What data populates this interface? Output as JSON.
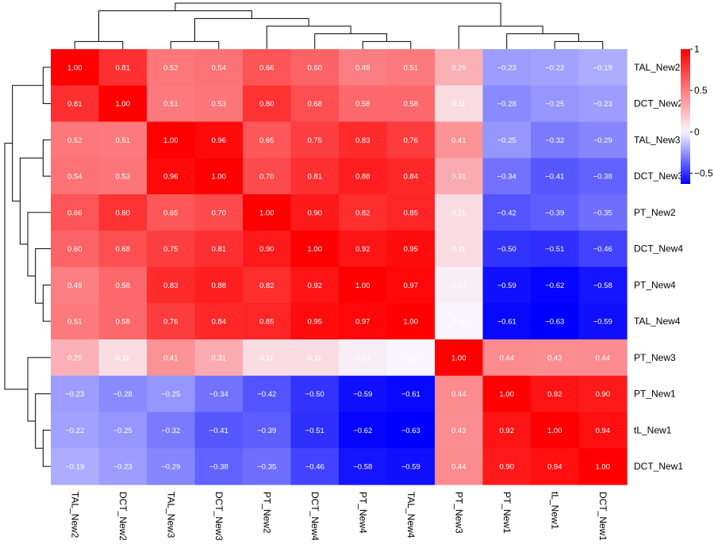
{
  "chart_data": {
    "type": "heatmap",
    "title": "",
    "xlabel": "",
    "ylabel": "",
    "rows": [
      "TAL_New2",
      "DCT_New2",
      "TAL_New3",
      "DCT_New3",
      "PT_New2",
      "DCT_New4",
      "PT_New4",
      "TAL_New4",
      "PT_New3",
      "PT_New1",
      "tL_New1",
      "DCT_New1"
    ],
    "columns": [
      "TAL_New2",
      "DCT_New2",
      "TAL_New3",
      "DCT_New3",
      "PT_New2",
      "DCT_New4",
      "PT_New4",
      "TAL_New4",
      "PT_New3",
      "PT_New1",
      "tL_New1",
      "DCT_New1"
    ],
    "values": [
      [
        1.0,
        0.81,
        0.52,
        0.54,
        0.66,
        0.6,
        0.49,
        0.51,
        0.29,
        -0.23,
        -0.22,
        -0.19
      ],
      [
        0.81,
        1.0,
        0.51,
        0.53,
        0.8,
        0.68,
        0.58,
        0.58,
        0.11,
        -0.28,
        -0.25,
        -0.23
      ],
      [
        0.52,
        0.51,
        1.0,
        0.96,
        0.65,
        0.75,
        0.83,
        0.76,
        0.41,
        -0.25,
        -0.32,
        -0.29
      ],
      [
        0.54,
        0.53,
        0.96,
        1.0,
        0.7,
        0.81,
        0.88,
        0.84,
        0.31,
        -0.34,
        -0.41,
        -0.38
      ],
      [
        0.66,
        0.8,
        0.65,
        0.7,
        1.0,
        0.9,
        0.82,
        0.85,
        0.11,
        -0.42,
        -0.39,
        -0.35
      ],
      [
        0.6,
        0.68,
        0.75,
        0.81,
        0.9,
        1.0,
        0.92,
        0.95,
        0.11,
        -0.5,
        -0.51,
        -0.46
      ],
      [
        0.49,
        0.58,
        0.83,
        0.88,
        0.82,
        0.92,
        1.0,
        0.97,
        0.04,
        -0.59,
        -0.62,
        -0.58
      ],
      [
        0.51,
        0.58,
        0.76,
        0.84,
        0.85,
        0.95,
        0.97,
        1.0,
        0.01,
        -0.61,
        -0.63,
        -0.59
      ],
      [
        0.29,
        0.11,
        0.41,
        0.31,
        0.11,
        0.11,
        0.04,
        0.01,
        1.0,
        0.44,
        0.43,
        0.44
      ],
      [
        -0.23,
        -0.28,
        -0.25,
        -0.34,
        -0.42,
        -0.5,
        -0.59,
        -0.61,
        0.44,
        1.0,
        0.92,
        0.9
      ],
      [
        -0.22,
        -0.25,
        -0.32,
        -0.41,
        -0.39,
        -0.51,
        -0.62,
        -0.63,
        0.43,
        0.92,
        1.0,
        0.94
      ],
      [
        -0.19,
        -0.23,
        -0.29,
        -0.38,
        -0.35,
        -0.46,
        -0.58,
        -0.59,
        0.44,
        0.9,
        0.94,
        1.0
      ]
    ],
    "color_scale": {
      "min": -0.63,
      "mid": 0,
      "max": 1,
      "low_color": "#0000ff",
      "mid_color": "#f8f8ff",
      "high_color": "#ff0000",
      "ticks": [
        1,
        0.5,
        0,
        -0.5
      ],
      "tick_labels": [
        "1",
        "0.5",
        "0",
        "−0.5"
      ]
    },
    "cell_label_color": "#ffffff",
    "cell_labels_shown": true,
    "row_dendrogram": "left",
    "column_dendrogram": "top",
    "legend_placement": "right",
    "grid": false
  }
}
